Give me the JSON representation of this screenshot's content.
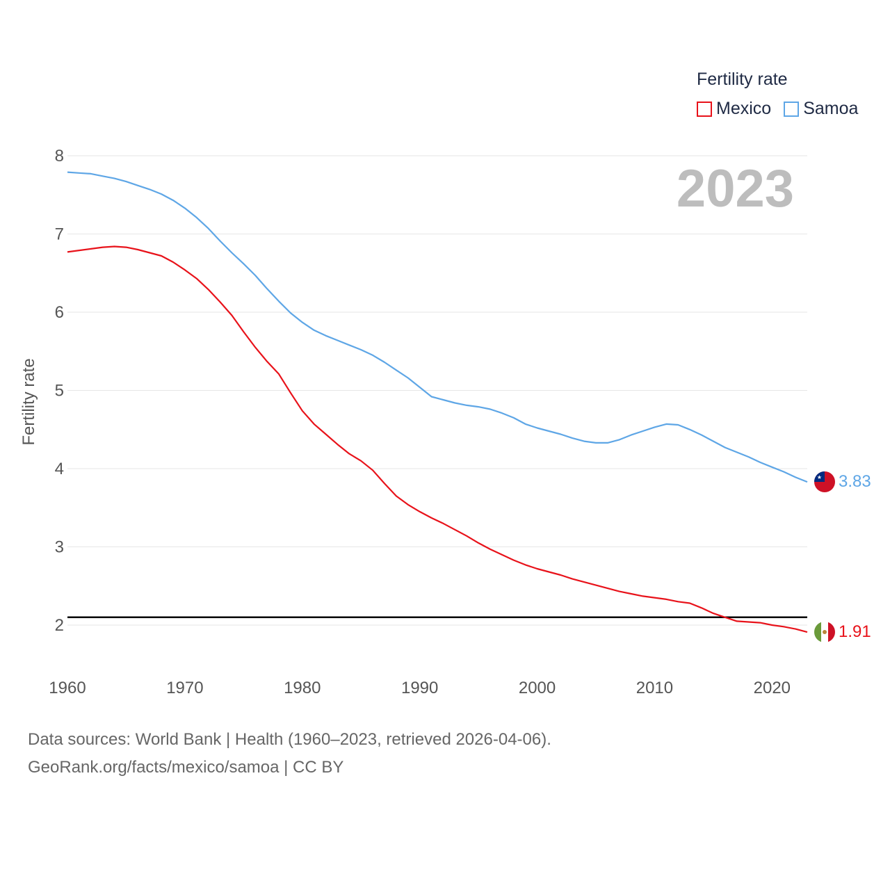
{
  "legend": {
    "title": "Fertility rate",
    "items": [
      {
        "label": "Mexico",
        "color": "#e8121a"
      },
      {
        "label": "Samoa",
        "color": "#5ea6e6"
      }
    ]
  },
  "year_label": "2023",
  "source": {
    "line1": "Data sources: World Bank | Health (1960–2023, retrieved 2026-04-06).",
    "line2": "GeoRank.org/facts/mexico/samoa | CC BY"
  },
  "end_labels": {
    "mexico": "1.91",
    "samoa": "3.83"
  },
  "icons": {
    "mexico_flag": "mexico-flag-icon",
    "samoa_flag": "samoa-flag-icon"
  },
  "chart_data": {
    "type": "line",
    "title": "Fertility rate",
    "xlabel": "",
    "ylabel": "Fertility rate",
    "xlim": [
      1960,
      2023
    ],
    "ylim": [
      1.5,
      8.2
    ],
    "xticks": [
      1960,
      1970,
      1980,
      1990,
      2000,
      2010,
      2020
    ],
    "yticks": [
      2,
      3,
      4,
      5,
      6,
      7,
      8
    ],
    "grid": true,
    "reference_line": {
      "y": 2.1,
      "color": "#000000"
    },
    "x": [
      1960,
      1961,
      1962,
      1963,
      1964,
      1965,
      1966,
      1967,
      1968,
      1969,
      1970,
      1971,
      1972,
      1973,
      1974,
      1975,
      1976,
      1977,
      1978,
      1979,
      1980,
      1981,
      1982,
      1983,
      1984,
      1985,
      1986,
      1987,
      1988,
      1989,
      1990,
      1991,
      1992,
      1993,
      1994,
      1995,
      1996,
      1997,
      1998,
      1999,
      2000,
      2001,
      2002,
      2003,
      2004,
      2005,
      2006,
      2007,
      2008,
      2009,
      2010,
      2011,
      2012,
      2013,
      2014,
      2015,
      2016,
      2017,
      2018,
      2019,
      2020,
      2021,
      2022,
      2023
    ],
    "series": [
      {
        "name": "Mexico",
        "color": "#e8121a",
        "values": [
          6.77,
          6.79,
          6.81,
          6.83,
          6.84,
          6.83,
          6.8,
          6.76,
          6.72,
          6.64,
          6.54,
          6.43,
          6.29,
          6.13,
          5.96,
          5.75,
          5.55,
          5.37,
          5.21,
          4.97,
          4.74,
          4.57,
          4.44,
          4.31,
          4.19,
          4.1,
          3.98,
          3.81,
          3.65,
          3.54,
          3.45,
          3.37,
          3.3,
          3.22,
          3.14,
          3.05,
          2.97,
          2.9,
          2.83,
          2.77,
          2.72,
          2.68,
          2.64,
          2.59,
          2.55,
          2.51,
          2.47,
          2.43,
          2.4,
          2.37,
          2.35,
          2.33,
          2.3,
          2.28,
          2.22,
          2.15,
          2.1,
          2.05,
          2.04,
          2.03,
          2.0,
          1.98,
          1.95,
          1.91
        ]
      },
      {
        "name": "Samoa",
        "color": "#5ea6e6",
        "values": [
          7.79,
          7.78,
          7.77,
          7.74,
          7.71,
          7.67,
          7.62,
          7.57,
          7.51,
          7.43,
          7.33,
          7.21,
          7.07,
          6.91,
          6.76,
          6.62,
          6.47,
          6.3,
          6.14,
          5.99,
          5.87,
          5.77,
          5.7,
          5.64,
          5.58,
          5.52,
          5.45,
          5.36,
          5.26,
          5.16,
          5.04,
          4.92,
          4.88,
          4.84,
          4.81,
          4.79,
          4.76,
          4.71,
          4.65,
          4.57,
          4.52,
          4.48,
          4.44,
          4.39,
          4.35,
          4.33,
          4.33,
          4.37,
          4.43,
          4.48,
          4.53,
          4.57,
          4.56,
          4.5,
          4.43,
          4.35,
          4.27,
          4.21,
          4.15,
          4.08,
          4.02,
          3.96,
          3.89,
          3.83
        ]
      }
    ]
  }
}
